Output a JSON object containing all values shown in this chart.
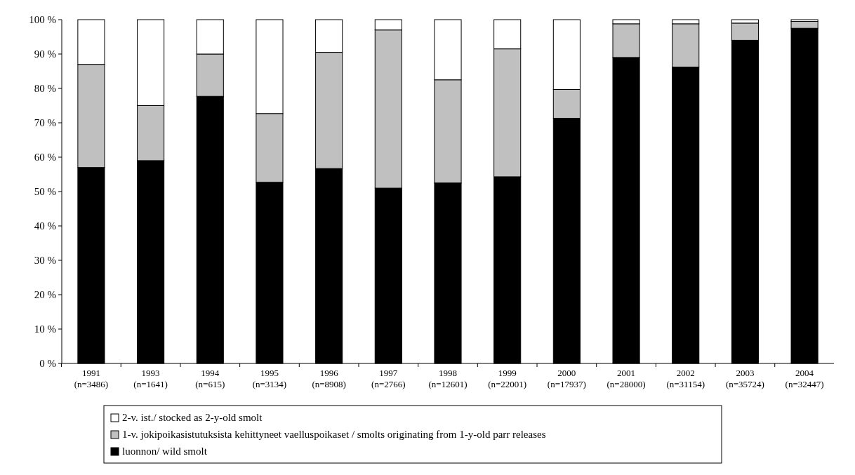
{
  "chart_data": {
    "type": "bar",
    "stacked": true,
    "categories": [
      "1991\n(n=3486)",
      "1993\n(n=1641)",
      "1994\n(n=615)",
      "1995\n(n=3134)",
      "1996\n(n=8908)",
      "1997\n(n=2766)",
      "1998\n(n=12601)",
      "1999\n(n=22001)",
      "2000\n(n=17937)",
      "2001\n(n=28000)",
      "2002\n(n=31154)",
      "2003\n(n=35724)",
      "2004\n(n=32447)"
    ],
    "series": [
      {
        "name": "luonnon/ wild smolt",
        "color": "#000000",
        "values": [
          57,
          59,
          77.7,
          52.7,
          56.7,
          51,
          52.5,
          54.3,
          71.3,
          89,
          86.2,
          94,
          97.5
        ]
      },
      {
        "name": "1-v. jokipoikasistutuksista kehittyneet vaelluspoikaset / smolts originating from 1-y-old parr releases",
        "color": "#c0c0c0",
        "values": [
          30,
          16,
          12.3,
          20,
          33.8,
          46,
          30,
          37.2,
          8.4,
          9.8,
          12.6,
          5,
          2
        ]
      },
      {
        "name": "2-v. ist./ stocked as 2-y-old smolt",
        "color": "#ffffff",
        "values": [
          13,
          25,
          10,
          27.3,
          9.5,
          3,
          17.5,
          8.5,
          20.3,
          1.2,
          1.2,
          1,
          0.5
        ]
      }
    ],
    "ylim": [
      0,
      100
    ],
    "yticks": [
      {
        "value": 0,
        "label": "0 %"
      },
      {
        "value": 10,
        "label": "10 %"
      },
      {
        "value": 20,
        "label": "20 %"
      },
      {
        "value": 30,
        "label": "30 %"
      },
      {
        "value": 40,
        "label": "40 %"
      },
      {
        "value": 50,
        "label": "50 %"
      },
      {
        "value": 60,
        "label": "60 %"
      },
      {
        "value": 70,
        "label": "70 %"
      },
      {
        "value": 80,
        "label": "80 %"
      },
      {
        "value": 90,
        "label": "90 %"
      },
      {
        "value": 100,
        "label": "100 %"
      }
    ],
    "legend": "bottom"
  }
}
